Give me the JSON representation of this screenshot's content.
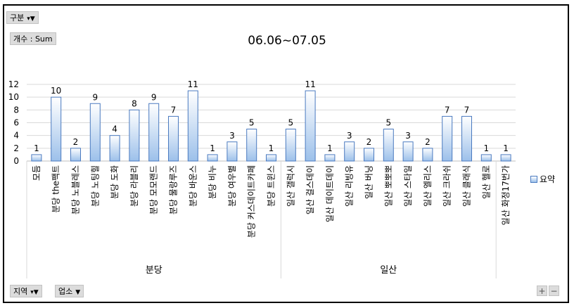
{
  "buttons": {
    "category_filter": "구분",
    "value_field": "개수 : Sum",
    "region_filter": "지역",
    "business_filter": "업소",
    "zoom_in": "+",
    "zoom_out": "−"
  },
  "colors": {
    "bar_top": "#ffffff",
    "bar_bottom": "#9cc0ea",
    "bar_border": "#4a7ac0",
    "gridline": "#d9d9d9"
  },
  "chart_data": {
    "type": "bar",
    "title": "06.06~07.05",
    "ylim": [
      0,
      12
    ],
    "yticks": [
      0,
      2,
      4,
      6,
      8,
      10,
      12
    ],
    "grid": true,
    "legend": {
      "position": "right",
      "entries": [
        "요약"
      ]
    },
    "groups": [
      {
        "name": "분당",
        "start": 0,
        "end": 13
      },
      {
        "name": "일산",
        "start": 13,
        "end": 24
      }
    ],
    "categories": [
      "모듬",
      "분당 the팩트",
      "분당 노블레스",
      "분당 노팅힐",
      "분당 도화",
      "분당 라블리",
      "분당 모모랜드",
      "분당 물랑루즈",
      "분당 바운스",
      "분당 비누",
      "분당 여우별",
      "분당 커스데이트카페",
      "분당 트윈스",
      "일산 갤럭시",
      "일산 걸스데이",
      "일산 데이트데이",
      "일산 리빙유",
      "일산 버닝",
      "일산 뽀뽀뽀",
      "일산 스타일",
      "일산 엘리스",
      "일산 크라쉬",
      "일산 클래식",
      "일산 헬로",
      "일산 화정17번가"
    ],
    "series": [
      {
        "name": "요약",
        "values": [
          1,
          10,
          2,
          9,
          4,
          8,
          9,
          7,
          11,
          1,
          3,
          5,
          1,
          5,
          11,
          1,
          3,
          2,
          5,
          3,
          2,
          7,
          7,
          1,
          1
        ]
      }
    ]
  }
}
